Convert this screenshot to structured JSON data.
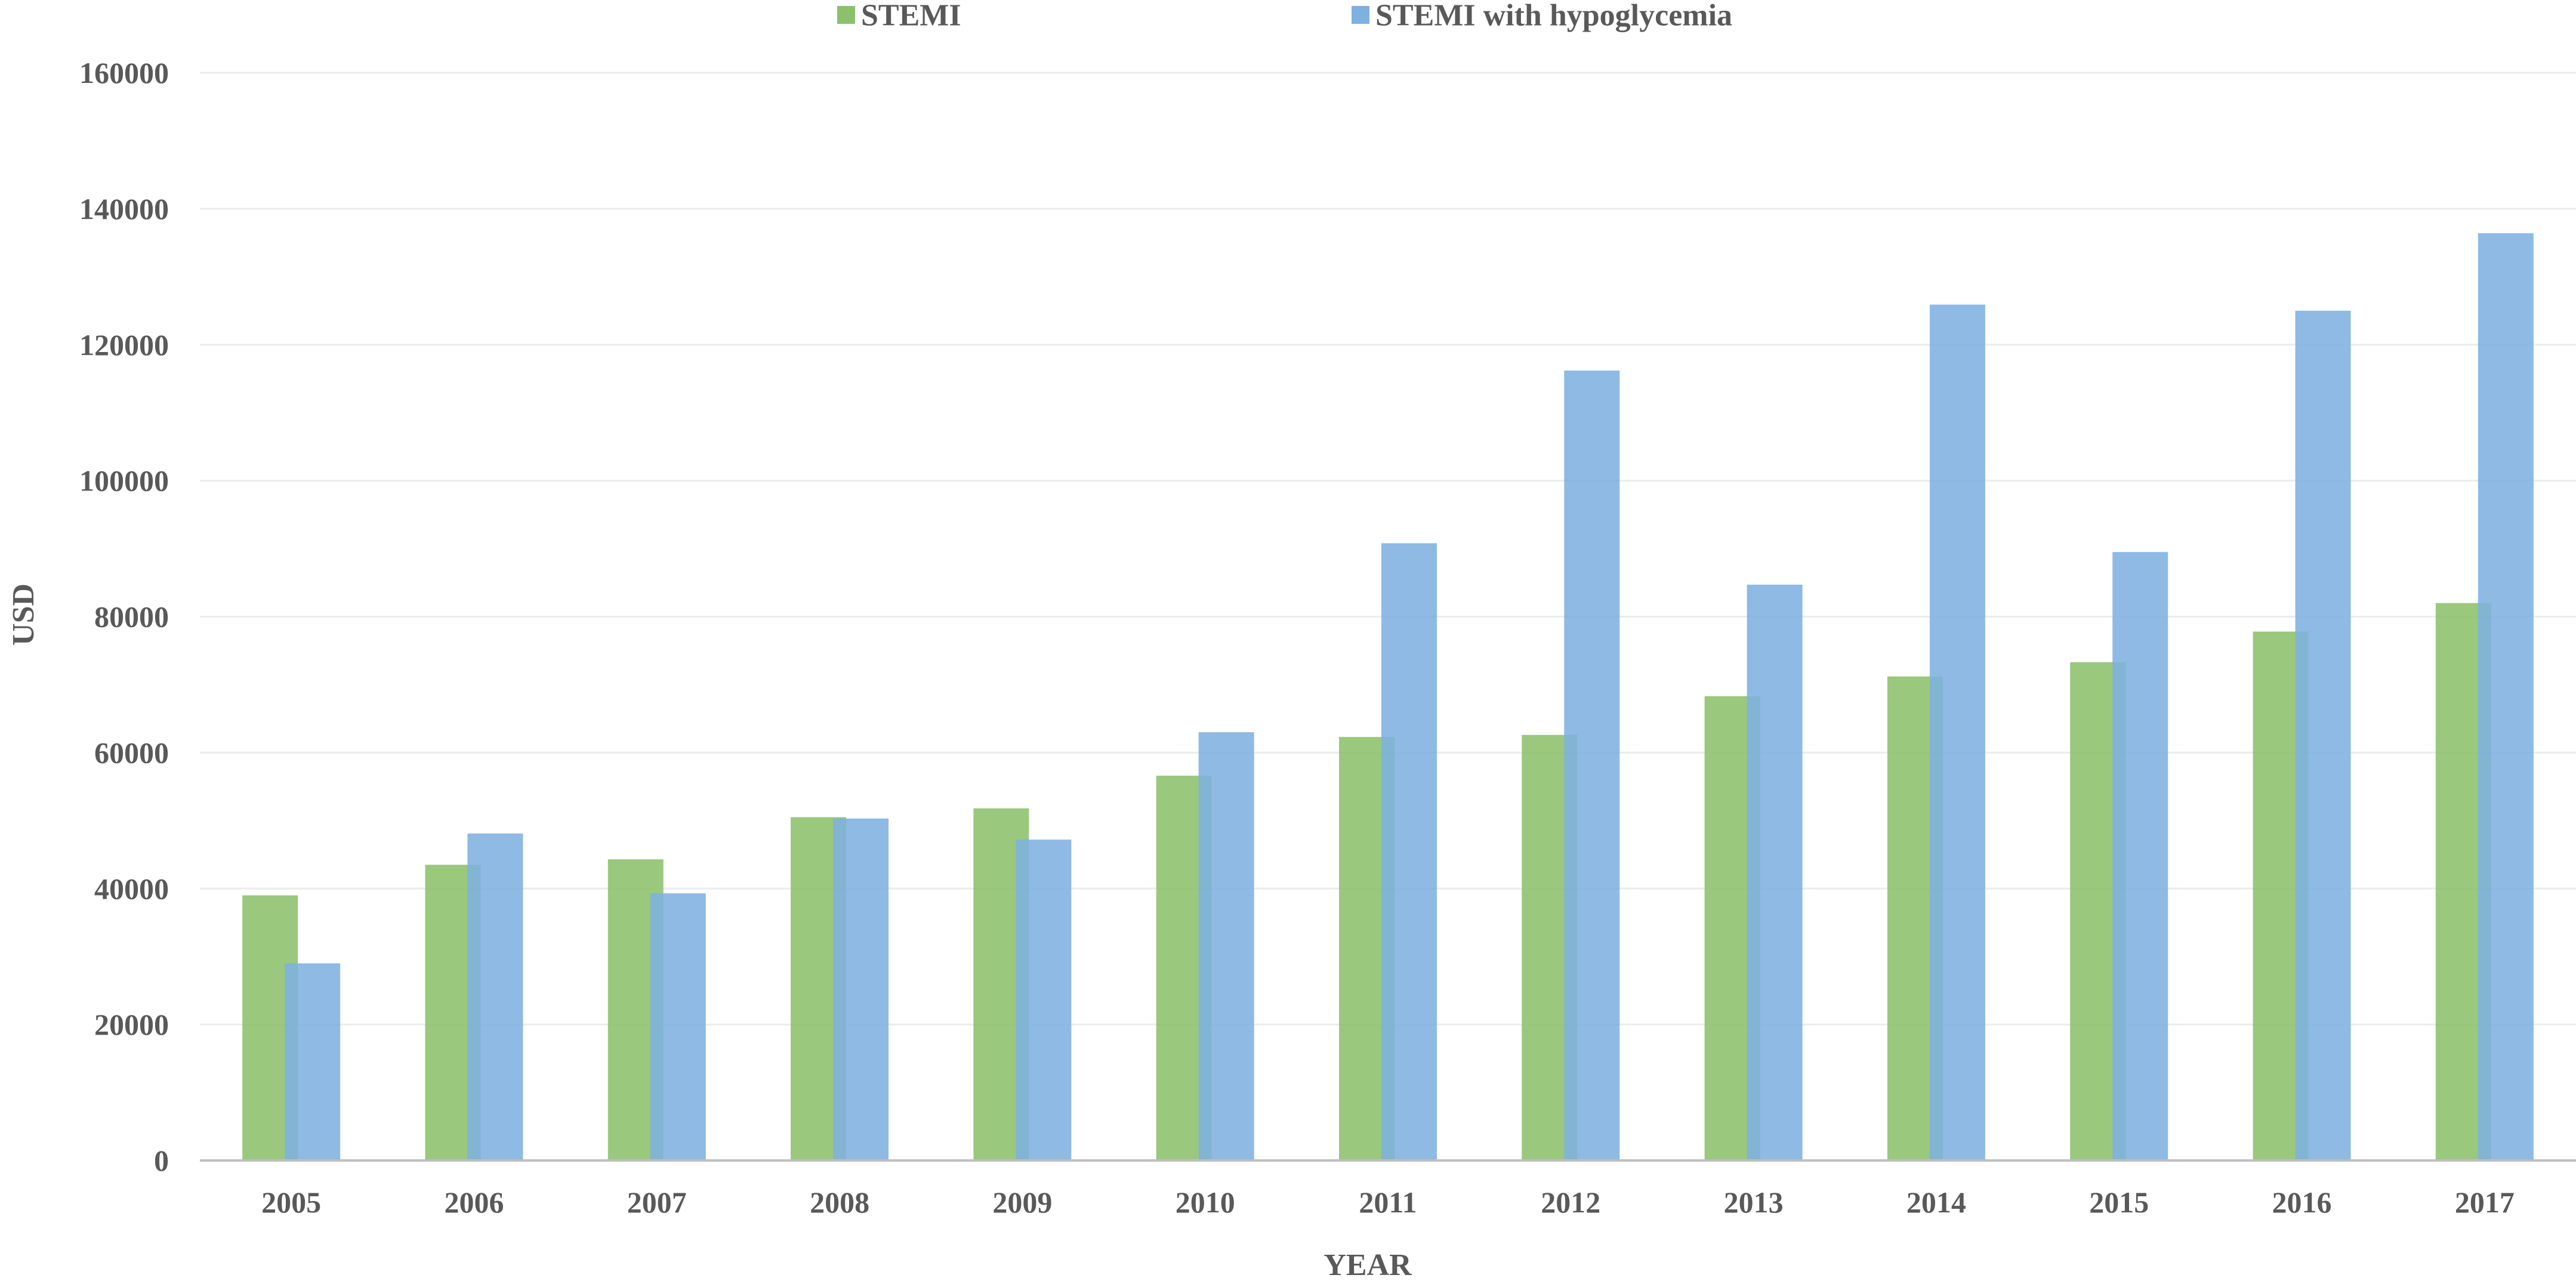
{
  "chart_data": {
    "type": "bar",
    "title": "",
    "xlabel": "YEAR",
    "ylabel": "USD",
    "ylim": [
      0,
      160000
    ],
    "yticks": [
      0,
      20000,
      40000,
      60000,
      80000,
      100000,
      120000,
      140000,
      160000
    ],
    "grid": true,
    "legend": "top-center",
    "categories": [
      "2005",
      "2006",
      "2007",
      "2008",
      "2009",
      "2010",
      "2011",
      "2012",
      "2013",
      "2014",
      "2015",
      "2016",
      "2017"
    ],
    "series": [
      {
        "name": "STEMI",
        "color": "#8cc06b",
        "values": [
          39000,
          43500,
          44300,
          50500,
          51800,
          56600,
          62300,
          62600,
          68300,
          71200,
          73300,
          77800,
          82000
        ]
      },
      {
        "name": "STEMI with hypoglycemia",
        "color": "#7eb0e0",
        "values": [
          29000,
          48100,
          39300,
          50300,
          47200,
          63000,
          90800,
          116200,
          84700,
          125900,
          89500,
          125000,
          136400
        ]
      }
    ]
  }
}
